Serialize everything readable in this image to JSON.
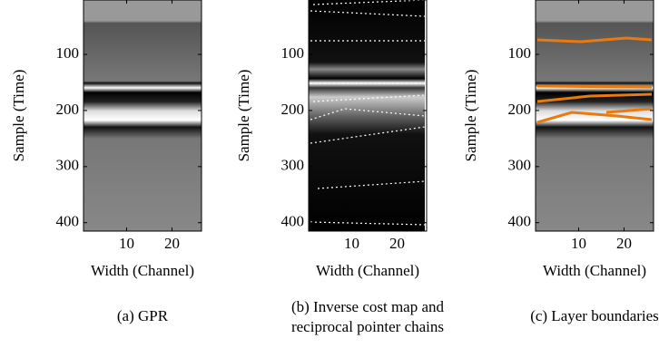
{
  "chart_data": [
    {
      "type": "image",
      "caption": "(a) GPR",
      "xlabel": "Width (Channel)",
      "ylabel": "Sample (Time)",
      "xlim": [
        0.5,
        26.5
      ],
      "ylim": [
        3,
        415
      ],
      "xticks": [
        10,
        20
      ],
      "yticks": [
        100,
        200,
        300,
        400
      ]
    },
    {
      "type": "image",
      "caption": [
        "(b) Inverse cost map and",
        "reciprocal pointer chains"
      ],
      "xlabel": "Width (Channel)",
      "ylabel": "Sample (Time)",
      "xlim": [
        0.5,
        26.5
      ],
      "ylim": [
        3,
        415
      ],
      "xticks": [
        10,
        20
      ],
      "yticks": [
        100,
        200,
        300,
        400
      ]
    },
    {
      "type": "image",
      "caption": "(c) Layer boundaries",
      "xlabel": "Width (Channel)",
      "ylabel": "Sample (Time)",
      "xlim": [
        0.5,
        26.5
      ],
      "ylim": [
        3,
        415
      ],
      "xticks": [
        10,
        20
      ],
      "yticks": [
        100,
        200,
        300,
        400
      ]
    }
  ]
}
